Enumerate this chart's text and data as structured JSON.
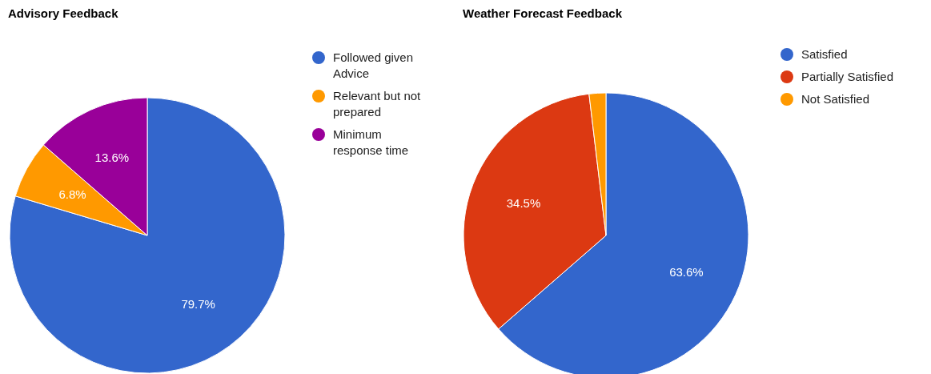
{
  "chart_data": [
    {
      "type": "pie",
      "title": "Advisory Feedback",
      "categories": [
        "Followed given Advice",
        "Relevant but not prepared",
        "Minimum response time"
      ],
      "values": [
        79.7,
        6.8,
        13.6
      ],
      "colors": [
        "#3366cc",
        "#ff9900",
        "#990099"
      ],
      "value_labels": [
        "79.7%",
        "6.8%",
        "13.6%"
      ],
      "legend": "right"
    },
    {
      "type": "pie",
      "title": "Weather Forecast Feedback",
      "categories": [
        "Satisfied",
        "Partially Satisfied",
        "Not Satisfied"
      ],
      "values": [
        63.6,
        34.5,
        1.9
      ],
      "colors": [
        "#3366cc",
        "#dc3912",
        "#ff9900"
      ],
      "value_labels": [
        "63.6%",
        "34.5%",
        null
      ],
      "legend": "right"
    }
  ]
}
